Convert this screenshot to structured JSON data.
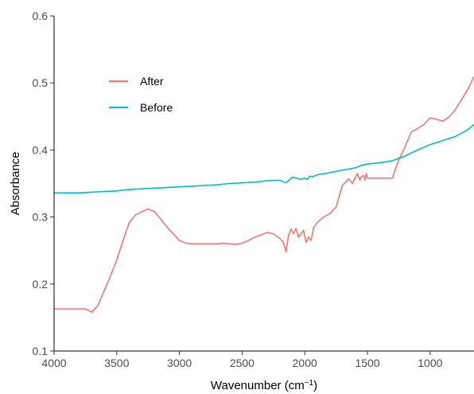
{
  "chart_data": {
    "type": "line",
    "title": "",
    "xlabel": "Wavenumber (cm",
    "xlabel_superscript": "−1",
    "xlabel_suffix": ")",
    "ylabel": "Absorbance",
    "xlim": [
      4000,
      650
    ],
    "ylim": [
      0.1,
      0.6
    ],
    "x_reversed": true,
    "grid": false,
    "legend_position": "top-left",
    "x_ticks": [
      4000,
      3500,
      3000,
      2500,
      2000,
      1500,
      1000
    ],
    "x_tick_labels": [
      "4000",
      "3500",
      "3000",
      "2500",
      "2000",
      "1500",
      "1000"
    ],
    "y_ticks": [
      0.1,
      0.2,
      0.3,
      0.4,
      0.5,
      0.6
    ],
    "y_tick_labels": [
      "0.1",
      "0.2",
      "0.3",
      "0.4",
      "0.5",
      "0.6"
    ],
    "series": [
      {
        "name": "After",
        "color": "#F8766D",
        "x": [
          4000,
          3900,
          3800,
          3750,
          3700,
          3650,
          3600,
          3550,
          3500,
          3450,
          3400,
          3350,
          3300,
          3250,
          3200,
          3150,
          3100,
          3050,
          3000,
          2950,
          2900,
          2850,
          2800,
          2750,
          2700,
          2650,
          2600,
          2550,
          2500,
          2450,
          2400,
          2350,
          2300,
          2250,
          2200,
          2170,
          2150,
          2130,
          2110,
          2090,
          2070,
          2050,
          2030,
          2010,
          1990,
          1970,
          1950,
          1930,
          1900,
          1850,
          1800,
          1750,
          1700,
          1650,
          1620,
          1580,
          1560,
          1550,
          1530,
          1520,
          1510,
          1500,
          1450,
          1400,
          1350,
          1300,
          1280,
          1250,
          1200,
          1150,
          1100,
          1050,
          1000,
          980,
          950,
          900,
          850,
          800,
          750,
          700,
          650
        ],
        "values": [
          0.163,
          0.163,
          0.163,
          0.163,
          0.158,
          0.168,
          0.19,
          0.212,
          0.236,
          0.265,
          0.292,
          0.303,
          0.308,
          0.312,
          0.308,
          0.297,
          0.285,
          0.275,
          0.265,
          0.261,
          0.26,
          0.26,
          0.26,
          0.26,
          0.26,
          0.261,
          0.26,
          0.259,
          0.261,
          0.265,
          0.27,
          0.273,
          0.277,
          0.275,
          0.268,
          0.262,
          0.248,
          0.272,
          0.282,
          0.275,
          0.283,
          0.27,
          0.275,
          0.28,
          0.262,
          0.27,
          0.265,
          0.284,
          0.292,
          0.3,
          0.305,
          0.315,
          0.347,
          0.357,
          0.35,
          0.365,
          0.355,
          0.36,
          0.362,
          0.355,
          0.365,
          0.358,
          0.358,
          0.358,
          0.358,
          0.358,
          0.37,
          0.385,
          0.405,
          0.427,
          0.432,
          0.438,
          0.448,
          0.447,
          0.446,
          0.443,
          0.449,
          0.46,
          0.475,
          0.49,
          0.51
        ]
      },
      {
        "name": "Before",
        "color": "#00BFC4",
        "x": [
          4000,
          3900,
          3800,
          3700,
          3600,
          3500,
          3400,
          3300,
          3200,
          3100,
          3000,
          2900,
          2800,
          2700,
          2600,
          2500,
          2400,
          2300,
          2200,
          2150,
          2120,
          2100,
          2060,
          2040,
          2000,
          1980,
          1960,
          1940,
          1900,
          1800,
          1700,
          1600,
          1550,
          1500,
          1400,
          1300,
          1200,
          1100,
          1000,
          900,
          800,
          700,
          650
        ],
        "values": [
          0.336,
          0.336,
          0.336,
          0.337,
          0.338,
          0.339,
          0.341,
          0.342,
          0.343,
          0.344,
          0.345,
          0.346,
          0.347,
          0.348,
          0.35,
          0.351,
          0.352,
          0.354,
          0.355,
          0.351,
          0.356,
          0.359,
          0.358,
          0.356,
          0.358,
          0.356,
          0.361,
          0.36,
          0.363,
          0.366,
          0.37,
          0.373,
          0.377,
          0.379,
          0.381,
          0.384,
          0.391,
          0.4,
          0.408,
          0.414,
          0.42,
          0.43,
          0.438
        ]
      }
    ]
  }
}
